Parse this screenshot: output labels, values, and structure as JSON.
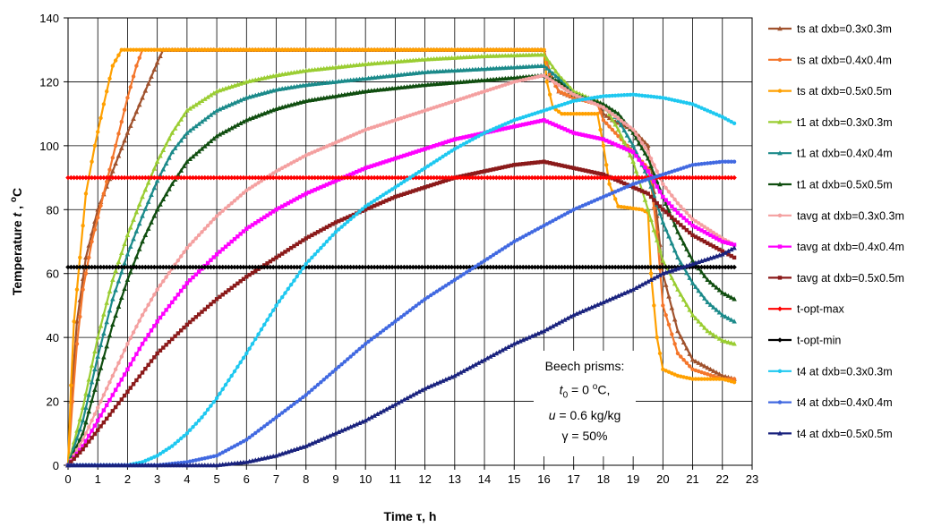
{
  "chart_data": {
    "type": "line",
    "xlabel": "Time τ, h",
    "ylabel": "Temperature t , °C",
    "xlim": [
      0,
      23
    ],
    "ylim": [
      0,
      140
    ],
    "x_ticks": [
      0,
      1,
      2,
      3,
      4,
      5,
      6,
      7,
      8,
      9,
      10,
      11,
      12,
      13,
      14,
      15,
      16,
      17,
      18,
      19,
      20,
      21,
      22,
      23
    ],
    "y_ticks": [
      0,
      20,
      40,
      60,
      80,
      100,
      120,
      140
    ],
    "grid": true,
    "legend_position": "right",
    "annotation": {
      "line1": "Beech prisms:",
      "line2": "t0 = 0 oC,",
      "line3": "u = 0.6 kg/kg",
      "line4": "γ = 50%"
    },
    "series": [
      {
        "name": "ts at dxb=0.3x0.3m",
        "color": "#A0522D",
        "marker": "triangle",
        "x": [
          0,
          0.1,
          0.3,
          0.6,
          1.0,
          1.5,
          2.0,
          2.5,
          3.0,
          3.2,
          16,
          16.2,
          16.5,
          17,
          17.8,
          18,
          18.3,
          19,
          19.5,
          19.6,
          19.8,
          20,
          20.5,
          21,
          22,
          22.4
        ],
        "y": [
          0,
          20,
          45,
          65,
          80,
          92,
          104,
          115,
          126,
          130,
          130,
          123,
          117,
          115,
          114,
          110,
          108,
          105,
          100,
          93,
          78,
          60,
          42,
          33,
          28,
          27
        ]
      },
      {
        "name": "ts at dxb=0.4x0.4m",
        "color": "#F4762B",
        "marker": "circle",
        "x": [
          0,
          0.15,
          0.3,
          0.5,
          0.8,
          1.2,
          1.6,
          2.0,
          2.3,
          2.5,
          16,
          16.2,
          16.5,
          17,
          17.8,
          18,
          18.5,
          19,
          19.5,
          19.6,
          19.8,
          20,
          20.5,
          21,
          22,
          22.4
        ],
        "y": [
          0,
          20,
          38,
          55,
          70,
          85,
          100,
          115,
          125,
          130,
          130,
          122,
          117,
          115,
          113,
          108,
          103,
          98,
          93,
          88,
          73,
          50,
          35,
          30,
          27,
          27
        ]
      },
      {
        "name": "ts at dxb=0.5x0.5m",
        "color": "#FFA000",
        "marker": "circle",
        "x": [
          0,
          0.1,
          0.2,
          0.4,
          0.6,
          0.9,
          1.2,
          1.5,
          1.8,
          16,
          16.1,
          16.3,
          16.6,
          17,
          17.8,
          18,
          18.2,
          18.5,
          19.3,
          19.5,
          19.6,
          19.8,
          20,
          20.5,
          21,
          22,
          22.4
        ],
        "y": [
          0,
          25,
          45,
          65,
          85,
          100,
          113,
          125,
          130,
          130,
          120,
          112,
          110,
          110,
          110,
          100,
          88,
          81,
          80,
          79,
          60,
          40,
          30,
          28,
          27,
          27,
          26
        ]
      },
      {
        "name": "t1 at dxb=0.3x0.3m",
        "color": "#9ACD32",
        "marker": "triangle",
        "x": [
          0,
          0.5,
          1,
          1.5,
          2,
          2.5,
          3,
          3.5,
          4,
          5,
          6,
          7,
          8,
          10,
          12,
          14,
          16,
          16.5,
          17,
          18,
          18.5,
          19,
          19.5,
          20,
          20.5,
          21,
          21.5,
          22,
          22.4
        ],
        "y": [
          0,
          18,
          40,
          58,
          72,
          84,
          95,
          104,
          111,
          117,
          120,
          122,
          123.5,
          125.5,
          127,
          128,
          128.5,
          122,
          117,
          113,
          105,
          95,
          80,
          64,
          55,
          47,
          42,
          39,
          38
        ]
      },
      {
        "name": "t1 at dxb=0.4x0.4m",
        "color": "#1B8A8A",
        "marker": "triangle",
        "x": [
          0,
          0.5,
          1,
          1.5,
          2,
          2.5,
          3,
          3.5,
          4,
          5,
          6,
          7,
          8,
          10,
          12,
          14,
          16,
          16.5,
          17,
          18,
          18.5,
          19,
          19.5,
          20,
          20.5,
          21,
          21.5,
          22,
          22.4
        ],
        "y": [
          0,
          14,
          34,
          52,
          66,
          78,
          89,
          98,
          104,
          111,
          115,
          117.5,
          119,
          121,
          123,
          124,
          125,
          121,
          116,
          113,
          108,
          100,
          90,
          76,
          65,
          57,
          51,
          47,
          45
        ]
      },
      {
        "name": "t1 at dxb=0.5x0.5m",
        "color": "#104E10",
        "marker": "triangle",
        "x": [
          0,
          0.5,
          1,
          1.5,
          2,
          2.5,
          3,
          3.5,
          4,
          5,
          6,
          7,
          8,
          10,
          12,
          14,
          16,
          16.5,
          17,
          18,
          18.5,
          19,
          19.5,
          20,
          20.5,
          21,
          21.5,
          22,
          22.4
        ],
        "y": [
          0,
          10,
          27,
          44,
          58,
          70,
          80,
          88,
          95,
          103,
          108,
          111.5,
          114,
          117,
          119,
          120.5,
          122,
          120,
          116,
          113,
          110,
          104,
          96,
          84,
          73,
          64,
          58,
          54,
          52
        ]
      },
      {
        "name": "tavg at dxb=0.3x0.3m",
        "color": "#F4A0A0",
        "marker": "circle",
        "x": [
          0,
          0.5,
          1,
          1.5,
          2,
          2.5,
          3,
          4,
          5,
          6,
          7,
          8,
          9,
          10,
          11,
          12,
          13,
          14,
          15,
          16,
          16.5,
          17,
          18,
          19,
          19.5,
          20,
          20.5,
          21,
          22,
          22.4
        ],
        "y": [
          0,
          8,
          18,
          28,
          38,
          47,
          55,
          68,
          78,
          86,
          92,
          97,
          101,
          105,
          108,
          111,
          114,
          117,
          120,
          122,
          119,
          116,
          112,
          105,
          98,
          88,
          82,
          77,
          71,
          69
        ]
      },
      {
        "name": "tavg at dxb=0.4x0.4m",
        "color": "#FF00FF",
        "marker": "square",
        "x": [
          0,
          0.5,
          1,
          1.5,
          2,
          2.5,
          3,
          4,
          5,
          6,
          7,
          8,
          9,
          10,
          11,
          12,
          13,
          14,
          15,
          16,
          16.5,
          17,
          18,
          19,
          19.5,
          20,
          20.5,
          21,
          22,
          22.4
        ],
        "y": [
          0,
          6,
          14,
          22,
          30,
          38,
          45,
          57,
          66,
          74,
          80,
          85,
          89,
          93,
          96,
          99,
          102,
          104,
          106,
          108,
          106,
          104,
          102,
          98,
          92,
          84,
          79,
          75,
          70,
          69
        ]
      },
      {
        "name": "tavg at dxb=0.5x0.5m",
        "color": "#8B1A1A",
        "marker": "square",
        "x": [
          0,
          0.5,
          1,
          1.5,
          2,
          2.5,
          3,
          4,
          5,
          6,
          7,
          8,
          9,
          10,
          11,
          12,
          13,
          14,
          15,
          16,
          17,
          18,
          19,
          19.5,
          20,
          20.5,
          21,
          22,
          22.4
        ],
        "y": [
          0,
          5,
          11,
          17,
          23,
          29,
          35,
          44,
          52,
          59,
          65,
          71,
          76,
          80,
          84,
          87,
          90,
          92,
          94,
          95,
          93,
          91,
          87,
          85,
          80,
          76,
          72,
          67,
          65
        ]
      },
      {
        "name": "t-opt-max",
        "color": "#FF0000",
        "marker": "diamond",
        "x": [
          0,
          22.4
        ],
        "y": [
          90,
          90
        ]
      },
      {
        "name": "t-opt-min",
        "color": "#000000",
        "marker": "diamond",
        "x": [
          0,
          22.4
        ],
        "y": [
          62,
          62
        ]
      },
      {
        "name": "t4 at dxb=0.3x0.3m",
        "color": "#1EC8F0",
        "marker": "circle",
        "x": [
          0,
          2,
          2.5,
          3,
          3.5,
          4,
          4.5,
          5,
          5.5,
          6,
          7,
          8,
          9,
          10,
          11,
          12,
          13,
          14,
          15,
          16,
          17,
          18,
          19,
          20,
          21,
          22,
          22.4
        ],
        "y": [
          0,
          0,
          1,
          3,
          6,
          10,
          15,
          21,
          28,
          35,
          50,
          63,
          73,
          81,
          87,
          93,
          99,
          104,
          108,
          111,
          114,
          115.5,
          116,
          115,
          113,
          109,
          107
        ]
      },
      {
        "name": "t4 at dxb=0.4x0.4m",
        "color": "#4169E1",
        "marker": "circle",
        "x": [
          0,
          3,
          4,
          5,
          6,
          7,
          8,
          9,
          10,
          11,
          12,
          13,
          14,
          15,
          16,
          17,
          18,
          19,
          20,
          21,
          22,
          22.4
        ],
        "y": [
          0,
          0,
          1,
          3,
          8,
          15,
          22,
          30,
          38,
          45,
          52,
          58,
          64,
          70,
          75,
          80,
          84,
          88,
          91,
          94,
          95,
          95
        ]
      },
      {
        "name": "t4 at dxb=0.5x0.5m",
        "color": "#1A237E",
        "marker": "triangle",
        "x": [
          0,
          5,
          6,
          7,
          8,
          9,
          10,
          11,
          12,
          13,
          14,
          15,
          16,
          17,
          18,
          19,
          20,
          21,
          22,
          22.4
        ],
        "y": [
          0,
          0,
          1,
          3,
          6,
          10,
          14,
          19,
          24,
          28,
          33,
          38,
          42,
          47,
          51,
          55,
          60,
          63,
          66,
          68
        ]
      }
    ]
  }
}
